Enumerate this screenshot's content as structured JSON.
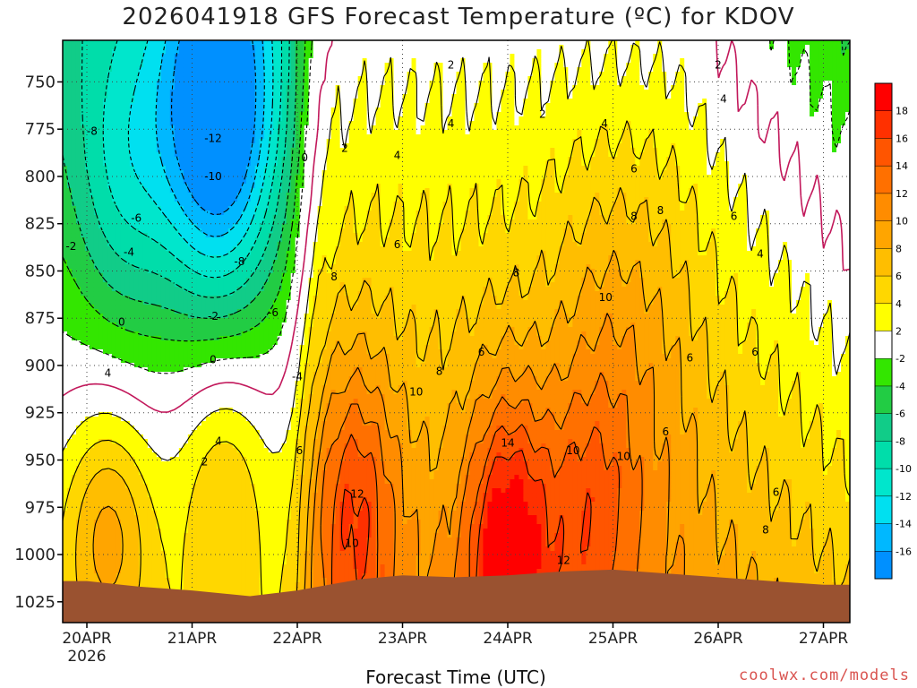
{
  "title": "2026041918 GFS Forecast Temperature (ºC) for KDOV",
  "xaxis_title": "Forecast Time (UTC)",
  "credit": "coolwx.com/models",
  "colors": {
    "terrain": "#9a5230",
    "contour_pos": "#000000",
    "contour_zero": "#c2185b",
    "contour_neg": "#000000"
  },
  "chart_data": {
    "type": "heatmap",
    "title": "2026041918 GFS Forecast Temperature (ºC) for KDOV",
    "xlabel": "Forecast Time (UTC)",
    "ylabel": "",
    "y_ticks": [
      750,
      775,
      800,
      825,
      850,
      875,
      900,
      925,
      950,
      975,
      1000,
      1025
    ],
    "ylim_hpa": [
      1036,
      728
    ],
    "x_ticks": [
      "20APR",
      "21APR",
      "22APR",
      "23APR",
      "24APR",
      "25APR",
      "26APR",
      "27APR"
    ],
    "x_sublabel": "2026",
    "colorbar": {
      "ticks": [
        18,
        16,
        14,
        12,
        10,
        8,
        6,
        4,
        2,
        -2,
        -4,
        -6,
        -8,
        -10,
        -12,
        -14,
        -16
      ],
      "bins": [
        {
          "from": 18,
          "to": 20,
          "color": "#ff0000"
        },
        {
          "from": 16,
          "to": 18,
          "color": "#ff3000"
        },
        {
          "from": 14,
          "to": 16,
          "color": "#ff5500"
        },
        {
          "from": 12,
          "to": 14,
          "color": "#ff7000"
        },
        {
          "from": 10,
          "to": 12,
          "color": "#ff8c00"
        },
        {
          "from": 8,
          "to": 10,
          "color": "#ffa500"
        },
        {
          "from": 6,
          "to": 8,
          "color": "#ffbe00"
        },
        {
          "from": 4,
          "to": 6,
          "color": "#ffd700"
        },
        {
          "from": 2,
          "to": 4,
          "color": "#ffff00"
        },
        {
          "from": -2,
          "to": 2,
          "color": "#ffffff"
        },
        {
          "from": -4,
          "to": -2,
          "color": "#33e600"
        },
        {
          "from": -6,
          "to": -4,
          "color": "#22cc44"
        },
        {
          "from": -8,
          "to": -6,
          "color": "#11cc88"
        },
        {
          "from": -10,
          "to": -8,
          "color": "#00ddaa"
        },
        {
          "from": -12,
          "to": -10,
          "color": "#00e6cc"
        },
        {
          "from": -14,
          "to": -12,
          "color": "#00e0f0"
        },
        {
          "from": -16,
          "to": -14,
          "color": "#00b8ff"
        },
        {
          "from": -18,
          "to": -16,
          "color": "#0090ff"
        }
      ]
    },
    "surface_pressure_hpa": [
      {
        "t": 0,
        "p": 1014
      },
      {
        "t": 0.5,
        "p": 1017
      },
      {
        "t": 1.0,
        "p": 1019
      },
      {
        "t": 1.55,
        "p": 1022
      },
      {
        "t": 2.0,
        "p": 1019
      },
      {
        "t": 2.6,
        "p": 1013
      },
      {
        "t": 3.0,
        "p": 1011
      },
      {
        "t": 3.5,
        "p": 1012
      },
      {
        "t": 4.0,
        "p": 1011
      },
      {
        "t": 4.5,
        "p": 1009
      },
      {
        "t": 5.0,
        "p": 1008
      },
      {
        "t": 5.5,
        "p": 1010
      },
      {
        "t": 6.0,
        "p": 1012
      },
      {
        "t": 6.5,
        "p": 1014
      },
      {
        "t": 7.0,
        "p": 1016
      },
      {
        "t": 7.25,
        "p": 1016
      }
    ],
    "contour_labels": [
      {
        "v": "2",
        "t": 3.46,
        "p": 741
      },
      {
        "v": "2",
        "t": 4.33,
        "p": 767
      },
      {
        "v": "2",
        "t": 6.0,
        "p": 741
      },
      {
        "v": "0",
        "t": 2.07,
        "p": 790
      },
      {
        "v": "2",
        "t": 2.45,
        "p": 785
      },
      {
        "v": "4",
        "t": 3.46,
        "p": 772
      },
      {
        "v": "4",
        "t": 4.92,
        "p": 772
      },
      {
        "v": "4",
        "t": 6.05,
        "p": 759
      },
      {
        "v": "4",
        "t": 2.95,
        "p": 789
      },
      {
        "v": "6",
        "t": 5.2,
        "p": 796
      },
      {
        "v": "8",
        "t": 5.2,
        "p": 821
      },
      {
        "v": "8",
        "t": 5.45,
        "p": 818
      },
      {
        "v": "6",
        "t": 6.15,
        "p": 821
      },
      {
        "v": "4",
        "t": 6.4,
        "p": 841
      },
      {
        "v": "6",
        "t": 2.95,
        "p": 836
      },
      {
        "v": "8",
        "t": 2.35,
        "p": 853
      },
      {
        "v": "8",
        "t": 4.08,
        "p": 851
      },
      {
        "v": "10",
        "t": 4.93,
        "p": 864
      },
      {
        "v": "6",
        "t": 3.75,
        "p": 893
      },
      {
        "v": "8",
        "t": 3.35,
        "p": 903
      },
      {
        "v": "6",
        "t": 5.73,
        "p": 896
      },
      {
        "v": "6",
        "t": 6.35,
        "p": 893
      },
      {
        "v": "10",
        "t": 3.13,
        "p": 914
      },
      {
        "v": "14",
        "t": 4.0,
        "p": 941
      },
      {
        "v": "10",
        "t": 4.62,
        "p": 945
      },
      {
        "v": "10",
        "t": 5.1,
        "p": 948
      },
      {
        "v": "6",
        "t": 5.5,
        "p": 935
      },
      {
        "v": "6",
        "t": 6.55,
        "p": 967
      },
      {
        "v": "8",
        "t": 6.45,
        "p": 987
      },
      {
        "v": "12",
        "t": 2.57,
        "p": 968
      },
      {
        "v": "10",
        "t": 2.52,
        "p": 994
      },
      {
        "v": "12",
        "t": 4.53,
        "p": 1003
      },
      {
        "v": "6",
        "t": 2.02,
        "p": 945
      },
      {
        "v": "-8",
        "t": 0.05,
        "p": 776
      },
      {
        "v": "-12",
        "t": 1.2,
        "p": 780
      },
      {
        "v": "-10",
        "t": 1.2,
        "p": 800
      },
      {
        "v": "-6",
        "t": 0.47,
        "p": 822
      },
      {
        "v": "-2",
        "t": -0.15,
        "p": 837
      },
      {
        "v": "-4",
        "t": 0.4,
        "p": 840
      },
      {
        "v": "-8",
        "t": 1.45,
        "p": 845
      },
      {
        "v": "-6",
        "t": 1.77,
        "p": 872
      },
      {
        "v": "-2",
        "t": 1.2,
        "p": 874
      },
      {
        "v": "0",
        "t": 0.33,
        "p": 877
      },
      {
        "v": "0",
        "t": 1.2,
        "p": 897
      },
      {
        "v": "-4",
        "t": 2.0,
        "p": 906
      },
      {
        "v": "4",
        "t": 0.2,
        "p": 904
      },
      {
        "v": "4",
        "t": 1.25,
        "p": 940
      },
      {
        "v": "2",
        "t": 1.12,
        "p": 951
      }
    ]
  }
}
